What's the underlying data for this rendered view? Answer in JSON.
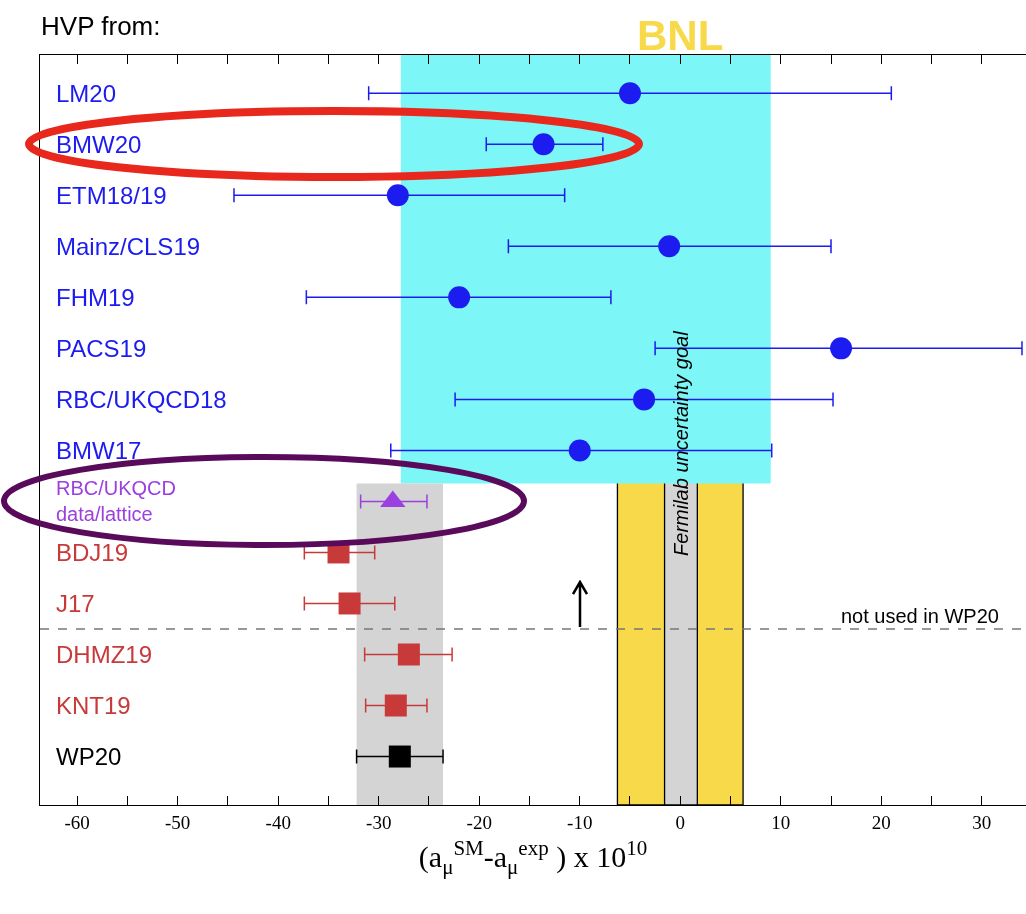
{
  "chart_data": {
    "type": "scatter",
    "orientation": "horizontal",
    "title": "HVP from:",
    "xlabel": "(a$_{μ}$$^{SM}$-a$_{μ}$$^{exp}$ ) x 10$^{10}$",
    "categories": [
      "LM20",
      "BMW20",
      "ETM18/19",
      "Mainz/CLS19",
      "FHM19",
      "PACS19",
      "RBC/UKQCD18",
      "BMW17",
      "RBC/UKQCD\ndata/lattice",
      "BDJ19",
      "J17",
      "DHMZ19",
      "KNT19",
      "WP20"
    ],
    "series": [
      {
        "color": "#1c1cf0",
        "marker": "circle",
        "values": [
          -5.0,
          -13.6,
          null,
          null,
          null,
          null,
          null,
          null,
          null,
          null,
          null,
          null,
          null,
          null
        ],
        "errors": [
          [
            -31.0,
            21.0
          ],
          [
            -19.3,
            -7.7
          ],
          null,
          null,
          null,
          null,
          null,
          null,
          null,
          null,
          null,
          null,
          null,
          null
        ]
      },
      {
        "color": "#1c1cf0",
        "marker": "circle",
        "values": [
          null,
          null,
          -28.1,
          -1.1,
          -22.0,
          16.0,
          -3.6,
          -10.0,
          null,
          null,
          null,
          null,
          null,
          null
        ],
        "errors": [
          null,
          null,
          [
            -44.4,
            -11.5
          ],
          [
            -17.1,
            15.0
          ],
          [
            -37.2,
            -6.9
          ],
          [
            -2.5,
            34.0
          ],
          [
            -22.4,
            15.2
          ],
          [
            -28.8,
            9.1
          ],
          null,
          null,
          null,
          null,
          null,
          null
        ]
      },
      {
        "color": "#9b3fe0",
        "marker": "triangle",
        "values": [
          null,
          null,
          null,
          null,
          null,
          null,
          null,
          null,
          -28.6,
          null,
          null,
          null,
          null,
          null
        ],
        "errors": [
          null,
          null,
          null,
          null,
          null,
          null,
          null,
          null,
          [
            -31.8,
            -25.2
          ],
          null,
          null,
          null,
          null,
          null
        ]
      },
      {
        "color": "#c83a3a",
        "marker": "square",
        "values": [
          null,
          null,
          null,
          null,
          null,
          null,
          null,
          null,
          null,
          -34.0,
          -32.9,
          null,
          null,
          null
        ],
        "errors": [
          null,
          null,
          null,
          null,
          null,
          null,
          null,
          null,
          null,
          [
            -37.4,
            -30.4
          ],
          [
            -37.4,
            -28.4
          ],
          null,
          null,
          null
        ]
      },
      {
        "color": "#c83a3a",
        "marker": "square",
        "values": [
          null,
          null,
          null,
          null,
          null,
          null,
          null,
          null,
          null,
          null,
          null,
          -27.0,
          -28.3,
          null
        ],
        "errors": [
          null,
          null,
          null,
          null,
          null,
          null,
          null,
          null,
          null,
          null,
          null,
          [
            -31.4,
            -22.7
          ],
          [
            -31.3,
            -25.2
          ],
          null
        ]
      },
      {
        "color": "#000000",
        "marker": "square",
        "values": [
          null,
          null,
          null,
          null,
          null,
          null,
          null,
          null,
          null,
          null,
          null,
          null,
          null,
          -27.9
        ],
        "errors": [
          null,
          null,
          null,
          null,
          null,
          null,
          null,
          null,
          null,
          null,
          null,
          null,
          null,
          [
            -32.2,
            -23.6
          ]
        ]
      }
    ],
    "xlim": [
      -63.7,
      34.4
    ],
    "xticks": [
      -60,
      {
        "value": -55,
        "label": null
      },
      -50,
      {
        "value": -45,
        "label": null
      },
      -40,
      {
        "value": -35,
        "label": null
      },
      -30,
      {
        "value": -25,
        "label": null
      },
      -20,
      {
        "value": -15,
        "label": null
      },
      -10,
      {
        "value": -5,
        "label": null
      },
      0,
      {
        "value": 5,
        "label": null
      },
      10,
      {
        "value": 15,
        "label": null
      },
      20,
      {
        "value": 25,
        "label": null
      },
      30
    ],
    "bands": [
      {
        "axis": "x",
        "from": -27.8,
        "to": 9.0,
        "color": "#7cf6f6"
      },
      {
        "axis": "x",
        "from": -32.2,
        "to": -23.6,
        "color": "#d4d4d4"
      },
      {
        "axis": "x",
        "from": -6.25,
        "to": 6.25,
        "color": "#f8d94a",
        "label": "BNL"
      },
      {
        "axis": "x",
        "from": -1.56,
        "to": 1.7,
        "color": "#d4d4d4",
        "label": "Fermilab uncertainty goal"
      }
    ],
    "annotations": [
      "not used in WP20"
    ],
    "grid": false
  }
}
